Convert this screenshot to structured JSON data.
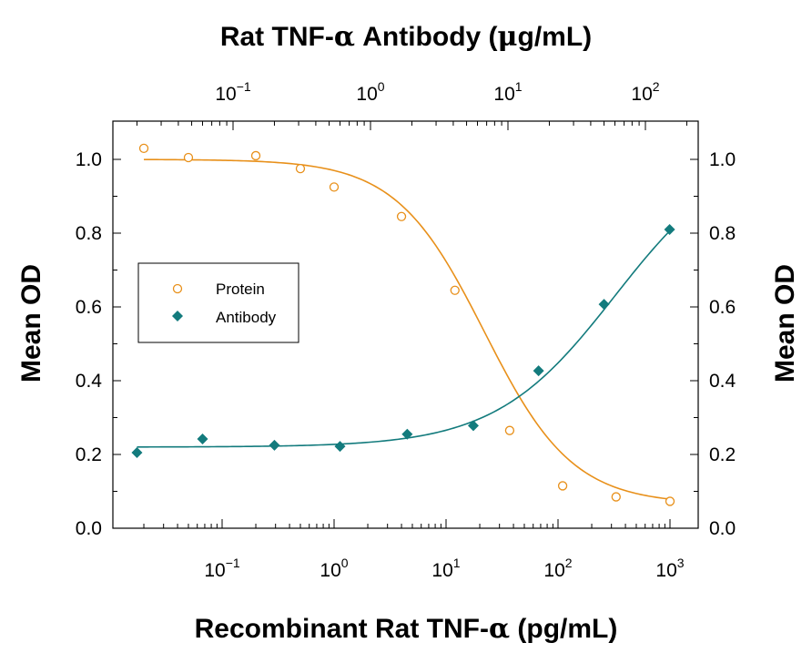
{
  "chart_data": {
    "type": "scatter",
    "top_axis": {
      "title_prefix": "Rat TNF-",
      "title_symbol": "α",
      "title_middle": " Antibody (",
      "title_unit_symbol": "μ",
      "title_suffix": "g/mL)",
      "scale": "log",
      "ticks": [
        {
          "value": 0.1,
          "base": "10",
          "exp": "−1"
        },
        {
          "value": 1,
          "base": "10",
          "exp": "0"
        },
        {
          "value": 10,
          "base": "10",
          "exp": "1"
        },
        {
          "value": 100,
          "base": "10",
          "exp": "2"
        }
      ]
    },
    "bottom_axis": {
      "title_prefix": "Recombinant Rat TNF-",
      "title_symbol": "α",
      "title_suffix": " (pg/mL)",
      "scale": "log",
      "ticks": [
        {
          "value": 0.1,
          "base": "10",
          "exp": "−1"
        },
        {
          "value": 1,
          "base": "10",
          "exp": "0"
        },
        {
          "value": 10,
          "base": "10",
          "exp": "1"
        },
        {
          "value": 100,
          "base": "10",
          "exp": "2"
        },
        {
          "value": 1000,
          "base": "10",
          "exp": "3"
        }
      ]
    },
    "y_axis": {
      "left_title": "Mean OD",
      "right_title": "Mean OD",
      "ylim": [
        0,
        1.1
      ],
      "ticks": [
        "0.0",
        "0.2",
        "0.4",
        "0.6",
        "0.8",
        "1.0"
      ]
    },
    "legend": {
      "placement": "left-middle",
      "entries": [
        "Protein",
        "Antibody"
      ]
    },
    "series": [
      {
        "name": "Protein",
        "axis": "bottom",
        "color": "#E8901A",
        "marker": "open-circle",
        "x": [
          0.02,
          0.05,
          0.2,
          0.5,
          1.0,
          4.0,
          12.0,
          37.0,
          110.0,
          330.0,
          1000.0
        ],
        "y": [
          1.03,
          1.005,
          1.01,
          0.975,
          0.925,
          0.845,
          0.645,
          0.265,
          0.115,
          0.085,
          0.073
        ],
        "fit": {
          "bottom": 0.065,
          "top": 1.0,
          "ec50": 22.0,
          "hill": 1.1
        }
      },
      {
        "name": "Antibody",
        "axis": "top",
        "color": "#137B7D",
        "marker": "filled-diamond",
        "x": [
          0.02,
          0.06,
          0.2,
          0.6,
          1.85,
          5.6,
          16.7,
          50.0,
          150.0
        ],
        "y": [
          0.205,
          0.242,
          0.225,
          0.222,
          0.255,
          0.278,
          0.427,
          0.607,
          0.81
        ],
        "fit": {
          "bottom": 0.22,
          "top": 1.04,
          "ec50": 60.0,
          "hill": 1.0
        }
      }
    ]
  }
}
